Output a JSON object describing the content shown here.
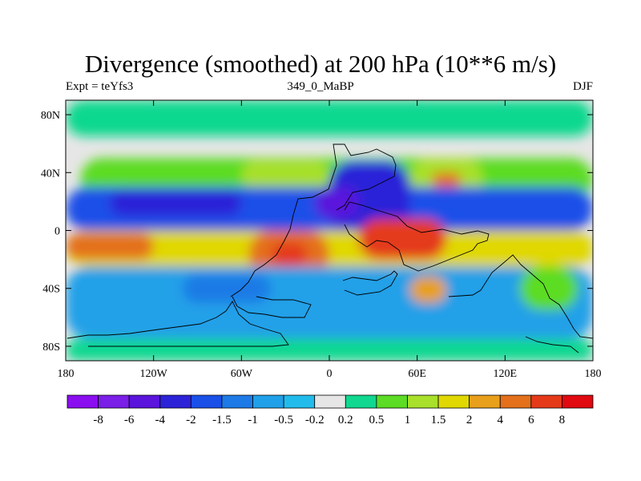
{
  "title": "Divergence (smoothed) at 200 hPa (10**6 m/s)",
  "left_label": "Expt = teYfs3",
  "center_label": "349_0_MaBP",
  "right_label": "DJF",
  "chart_data": {
    "type": "heatmap",
    "title": "Divergence (smoothed) at 200 hPa (10**6 m/s)",
    "xlim": [
      -180,
      180
    ],
    "ylim": [
      -90,
      90
    ],
    "x_ticks": [
      {
        "value": -180,
        "label": "180"
      },
      {
        "value": -120,
        "label": "120W"
      },
      {
        "value": -60,
        "label": "60W"
      },
      {
        "value": 0,
        "label": "0"
      },
      {
        "value": 60,
        "label": "60E"
      },
      {
        "value": 120,
        "label": "120E"
      },
      {
        "value": 180,
        "label": "180"
      }
    ],
    "y_ticks": [
      {
        "value": 80,
        "label": "80N"
      },
      {
        "value": 40,
        "label": "40N"
      },
      {
        "value": 0,
        "label": "0"
      },
      {
        "value": -40,
        "label": "40S"
      },
      {
        "value": -80,
        "label": "80S"
      }
    ],
    "colorbar": {
      "levels": [
        "-8",
        "-6",
        "-4",
        "-2",
        "-1.5",
        "-1",
        "-0.5",
        "-0.2",
        "0.2",
        "0.5",
        "1",
        "1.5",
        "2",
        "4",
        "6",
        "8"
      ],
      "colors": [
        "#8a0ef0",
        "#7a1ee8",
        "#5a14dc",
        "#2c22d8",
        "#1a4fe8",
        "#1e7ae6",
        "#20a0e8",
        "#22bcec",
        "#e6e6e6",
        "#10d890",
        "#5cdc24",
        "#a8e02c",
        "#e0d800",
        "#e8a01c",
        "#e4701c",
        "#e43a1a",
        "#e00a10"
      ]
    },
    "regions": [
      {
        "lon": [
          -170,
          180
        ],
        "lat": [
          20,
          50
        ],
        "level": "0.5"
      },
      {
        "lon": [
          -60,
          0
        ],
        "lat": [
          28,
          48
        ],
        "level": "1"
      },
      {
        "lon": [
          55,
          105
        ],
        "lat": [
          22,
          50
        ],
        "level": "1"
      },
      {
        "lon": [
          70,
          90
        ],
        "lat": [
          30,
          40
        ],
        "level": "4"
      },
      {
        "lon": [
          -180,
          180
        ],
        "lat": [
          0,
          30
        ],
        "level": "-1.5"
      },
      {
        "lon": [
          -150,
          -60
        ],
        "lat": [
          10,
          28
        ],
        "level": "-2"
      },
      {
        "lon": [
          0,
          55
        ],
        "lat": [
          -2,
          48
        ],
        "level": "-2"
      },
      {
        "lon": [
          -10,
          20
        ],
        "lat": [
          8,
          30
        ],
        "level": "-4"
      },
      {
        "lon": [
          -180,
          180
        ],
        "lat": [
          -25,
          0
        ],
        "level": "1.5"
      },
      {
        "lon": [
          -180,
          -120
        ],
        "lat": [
          -20,
          -2
        ],
        "level": "4"
      },
      {
        "lon": [
          -55,
          0
        ],
        "lat": [
          -32,
          0
        ],
        "level": "4"
      },
      {
        "lon": [
          -40,
          -15
        ],
        "lat": [
          -25,
          -8
        ],
        "level": "6"
      },
      {
        "lon": [
          20,
          80
        ],
        "lat": [
          -20,
          8
        ],
        "level": "6"
      },
      {
        "lon": [
          -180,
          180
        ],
        "lat": [
          -75,
          -25
        ],
        "level": "-0.5"
      },
      {
        "lon": [
          -100,
          -40
        ],
        "lat": [
          -50,
          -30
        ],
        "level": "-1"
      },
      {
        "lon": [
          55,
          80
        ],
        "lat": [
          -50,
          -32
        ],
        "level": "2"
      },
      {
        "lon": [
          130,
          170
        ],
        "lat": [
          -55,
          -25
        ],
        "level": "0.5"
      },
      {
        "lon": [
          -180,
          180
        ],
        "lat": [
          -90,
          -75
        ],
        "level": "0.2"
      },
      {
        "lon": [
          -180,
          180
        ],
        "lat": [
          65,
          90
        ],
        "level": "0.2"
      }
    ]
  }
}
